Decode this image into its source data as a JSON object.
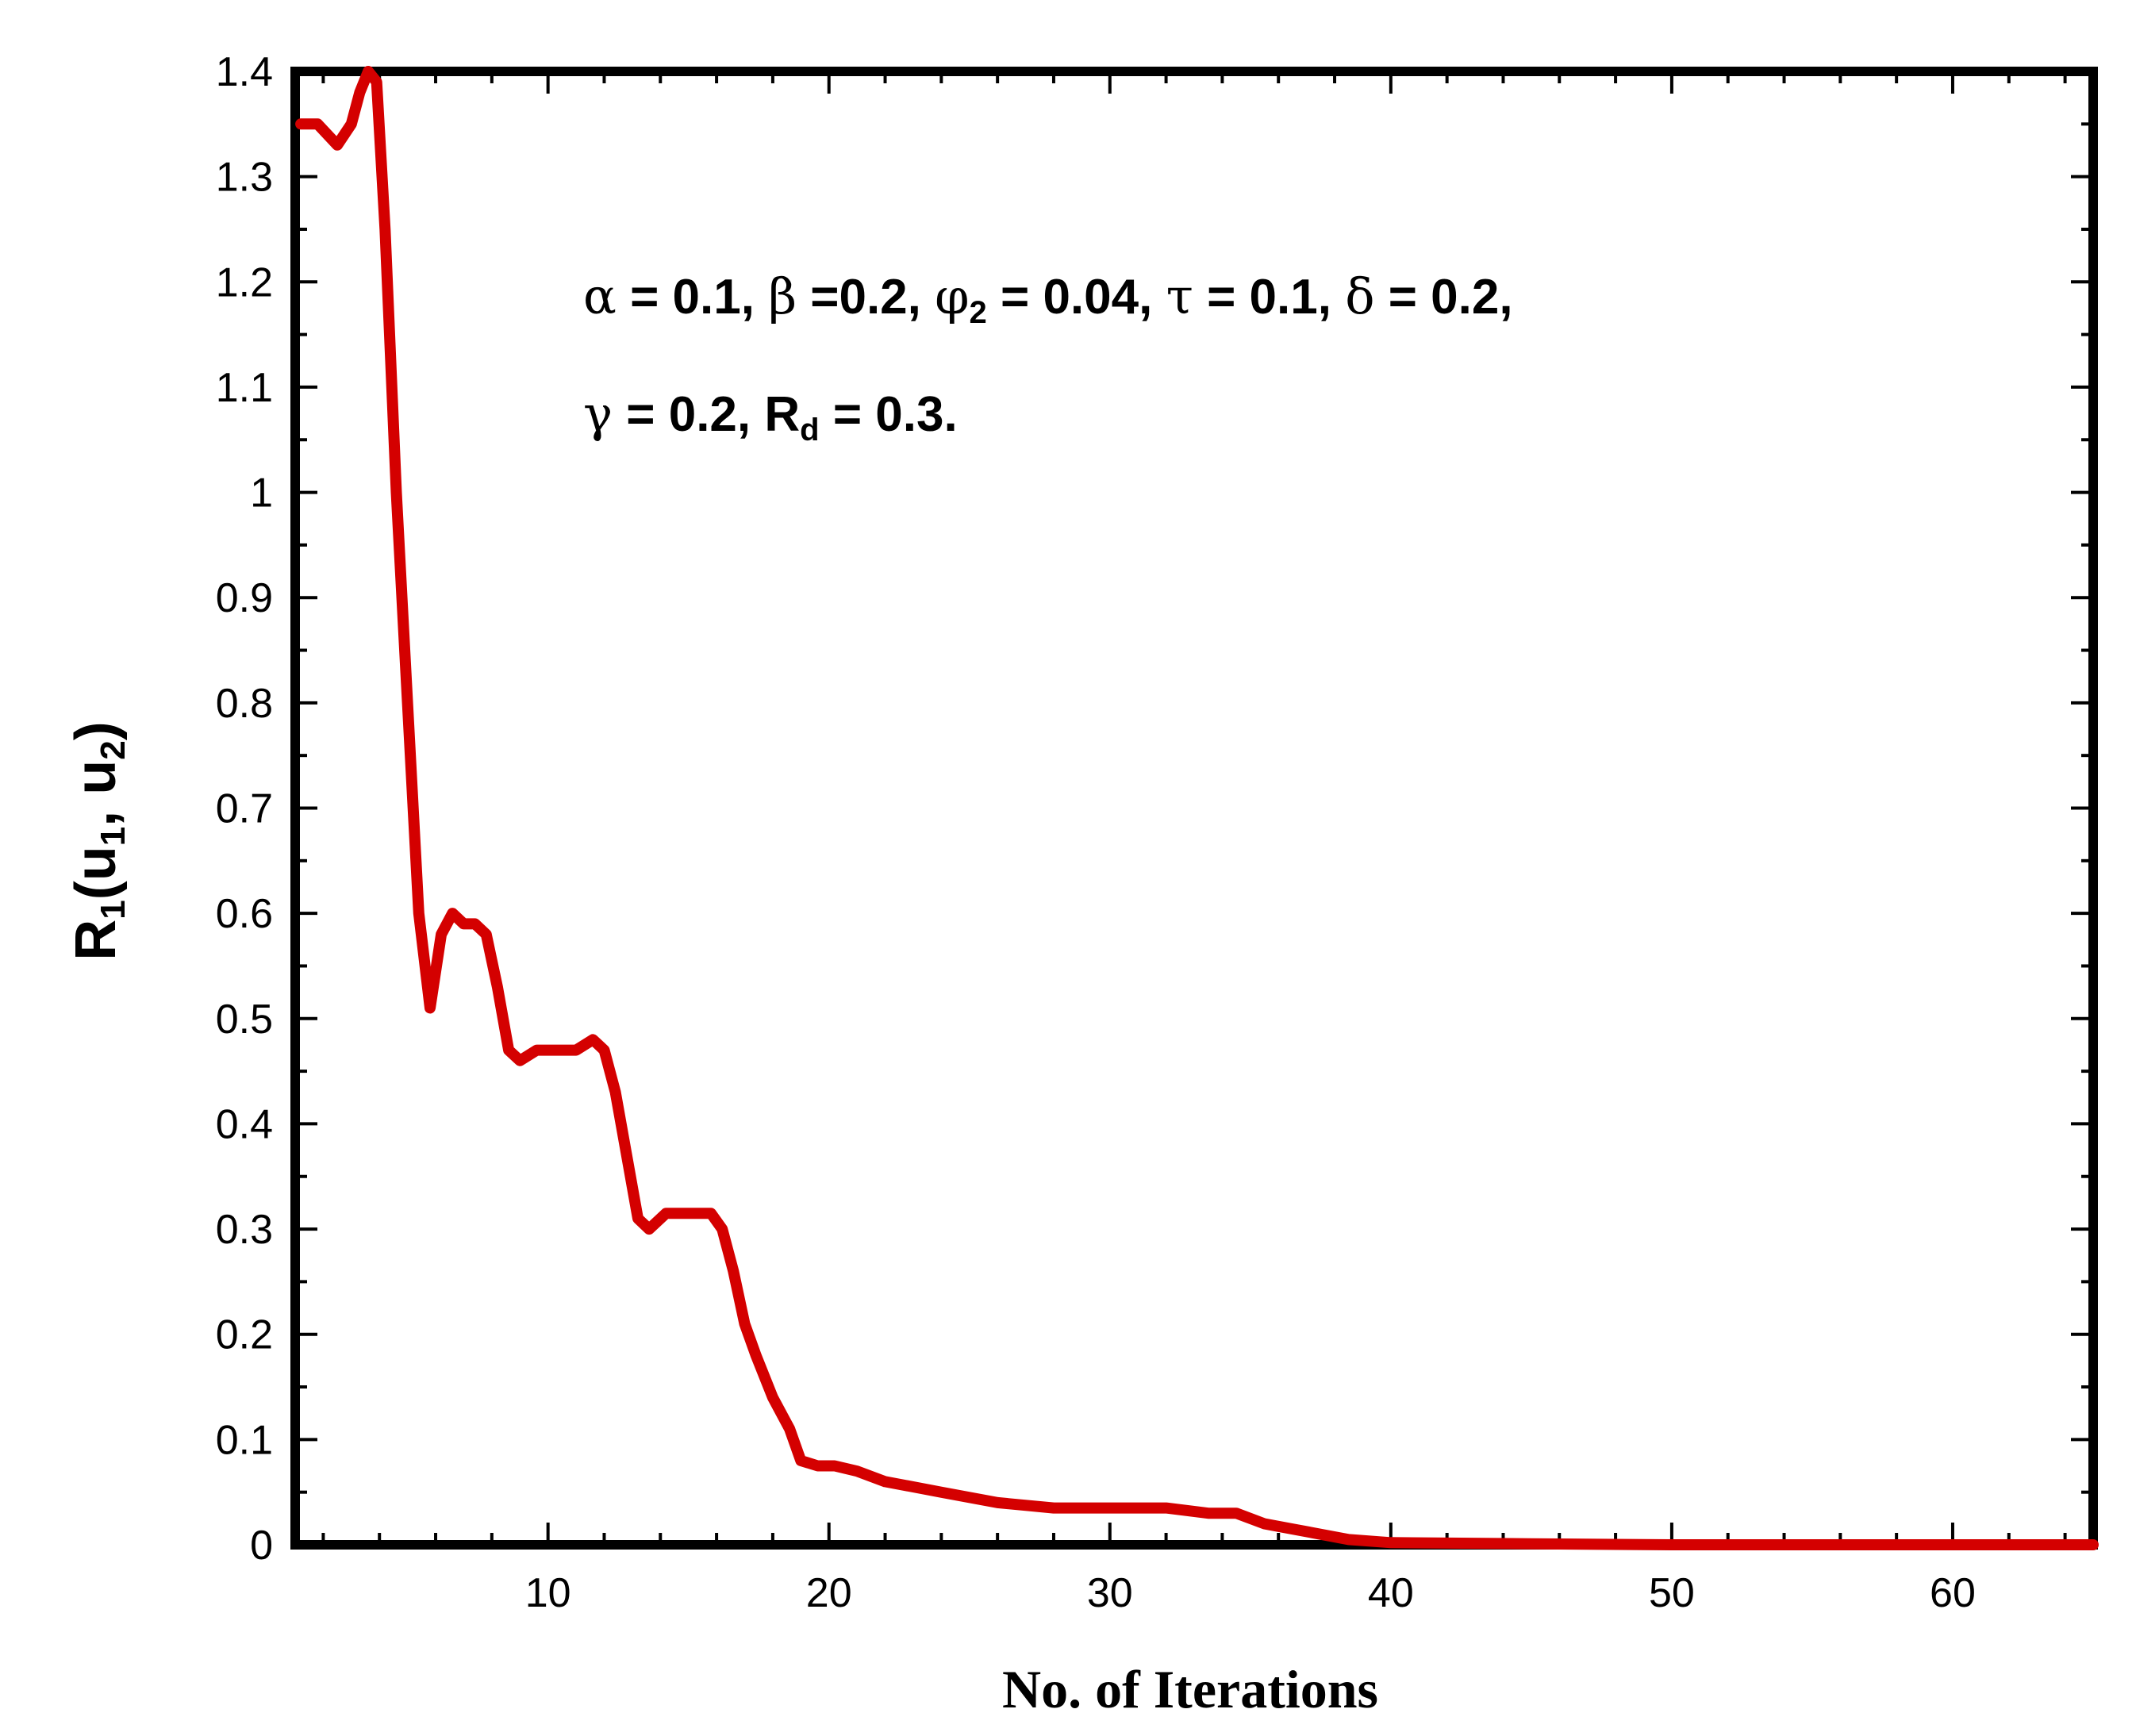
{
  "chart_data": {
    "type": "line",
    "xlabel": "No. of Iterations",
    "ylabel": {
      "main": "R",
      "sub1": "1",
      "open": "(u",
      "sub2": "1",
      "mid": ", u",
      "sub3": "2",
      "close": ")"
    },
    "xlim": [
      1,
      65
    ],
    "ylim": [
      0,
      1.4
    ],
    "x_ticks": [
      10,
      20,
      30,
      40,
      50,
      60
    ],
    "x_tick_labels": [
      "10",
      "20",
      "30",
      "40",
      "50",
      "60"
    ],
    "y_ticks": [
      0,
      0.1,
      0.2,
      0.3,
      0.4,
      0.5,
      0.6,
      0.7,
      0.8,
      0.9,
      1,
      1.1,
      1.2,
      1.3,
      1.4
    ],
    "y_tick_labels": [
      "0",
      "0.1",
      "0.2",
      "0.3",
      "0.4",
      "0.5",
      "0.6",
      "0.7",
      "0.8",
      "0.9",
      "1",
      "1.1",
      "1.2",
      "1.3",
      "1.4"
    ],
    "grid": false,
    "line_color": "#d40000",
    "series": [
      {
        "x": [
          1.2,
          1.8,
          2.5,
          3.0,
          3.3,
          3.6,
          3.9,
          4.2,
          4.6,
          5.0,
          5.4,
          5.8,
          6.2,
          6.6,
          7.0,
          7.4,
          7.8,
          8.2,
          8.6,
          9.0,
          9.6,
          10.2,
          11.0,
          11.6,
          12.0,
          12.4,
          12.8,
          13.2,
          13.6,
          14.2,
          14.8,
          15.4,
          15.8,
          16.2,
          16.6,
          17.0,
          17.4,
          18.0,
          18.6,
          19.0,
          19.6,
          20.2,
          21.0,
          22.0,
          23.0,
          24.0,
          26.0,
          28.0,
          30.0,
          32.0,
          33.5,
          34.5,
          35.5,
          36.5,
          37.5,
          38.5,
          40.0,
          45.0,
          50.0,
          55.0,
          60.0,
          65.0
        ],
        "y": [
          1.35,
          1.35,
          1.33,
          1.35,
          1.38,
          1.4,
          1.39,
          1.25,
          1.0,
          0.8,
          0.6,
          0.51,
          0.58,
          0.6,
          0.59,
          0.59,
          0.58,
          0.53,
          0.47,
          0.46,
          0.47,
          0.47,
          0.47,
          0.48,
          0.47,
          0.43,
          0.37,
          0.31,
          0.3,
          0.315,
          0.315,
          0.315,
          0.315,
          0.3,
          0.26,
          0.21,
          0.18,
          0.14,
          0.11,
          0.08,
          0.075,
          0.075,
          0.07,
          0.06,
          0.055,
          0.05,
          0.04,
          0.035,
          0.035,
          0.035,
          0.03,
          0.03,
          0.02,
          0.015,
          0.01,
          0.005,
          0.002,
          0.001,
          0.0,
          0.0,
          0.0,
          0.0
        ]
      }
    ],
    "annotation": {
      "line1": [
        {
          "g": "α",
          "t": " = 0.1, "
        },
        {
          "g": "β",
          "t": " =0.2, "
        },
        {
          "g": "φ",
          "sub": "2",
          "t": " = 0.04, "
        },
        {
          "g": "τ",
          "t": " = 0.1, "
        },
        {
          "g": "δ",
          "t": " = 0.2,"
        }
      ],
      "line2": [
        {
          "g": "γ",
          "t": " = 0.2, "
        },
        {
          "p": "R",
          "sub": "d",
          "t": " = 0.3."
        }
      ]
    }
  }
}
